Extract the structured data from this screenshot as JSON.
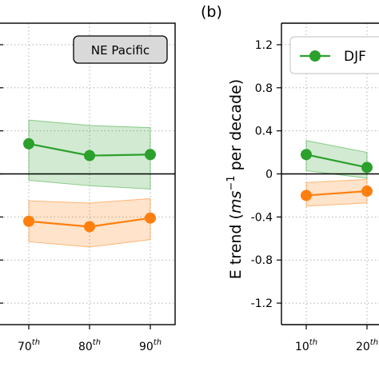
{
  "chart_data": [
    {
      "type": "line",
      "title": "",
      "annotation": "NE Pacific",
      "x": [
        70,
        80,
        90
      ],
      "xtick_labels": [
        {
          "base": "70",
          "sup": "th"
        },
        {
          "base": "80",
          "sup": "th"
        },
        {
          "base": "90",
          "sup": "th"
        }
      ],
      "ylim": [
        -1.4,
        1.4
      ],
      "grid": true,
      "zero_line": true,
      "series": [
        {
          "name": "",
          "color": "#2ca02c",
          "values": [
            0.28,
            0.17,
            0.18
          ],
          "band_lower": [
            -0.06,
            -0.11,
            -0.14
          ],
          "band_upper": [
            0.5,
            0.45,
            0.43
          ]
        },
        {
          "name": "",
          "color": "#ff7f0e",
          "values": [
            -0.44,
            -0.49,
            -0.41
          ],
          "band_lower": [
            -0.63,
            -0.68,
            -0.61
          ],
          "band_upper": [
            -0.25,
            -0.27,
            -0.23
          ]
        }
      ]
    },
    {
      "type": "line",
      "panel_label": "(b)",
      "ylabel": {
        "prefix": "E trend (",
        "italic_base": "ms",
        "sup": "−1",
        "suffix": " per decade)"
      },
      "x": [
        10,
        20
      ],
      "xtick_labels": [
        {
          "base": "10",
          "sup": "th"
        },
        {
          "base": "20",
          "sup": "th"
        }
      ],
      "yticks": [
        "1.2",
        "0.8",
        "0.4",
        "0",
        "-0.4",
        "-0.8",
        "-1.2"
      ],
      "ytick_values": [
        1.2,
        0.8,
        0.4,
        0,
        -0.4,
        -0.8,
        -1.2
      ],
      "ylim": [
        -1.4,
        1.4
      ],
      "grid": true,
      "zero_line": true,
      "legend": {
        "placement": "top-right",
        "entries": [
          {
            "label": "DJF",
            "color": "#2ca02c"
          }
        ]
      },
      "series": [
        {
          "name": "DJF",
          "color": "#2ca02c",
          "values": [
            0.18,
            0.06
          ],
          "band_lower": [
            0.03,
            -0.04
          ],
          "band_upper": [
            0.31,
            0.2
          ]
        },
        {
          "name": "",
          "color": "#ff7f0e",
          "values": [
            -0.2,
            -0.16
          ],
          "band_lower": [
            -0.3,
            -0.27
          ],
          "band_upper": [
            -0.08,
            -0.05
          ]
        }
      ]
    }
  ]
}
